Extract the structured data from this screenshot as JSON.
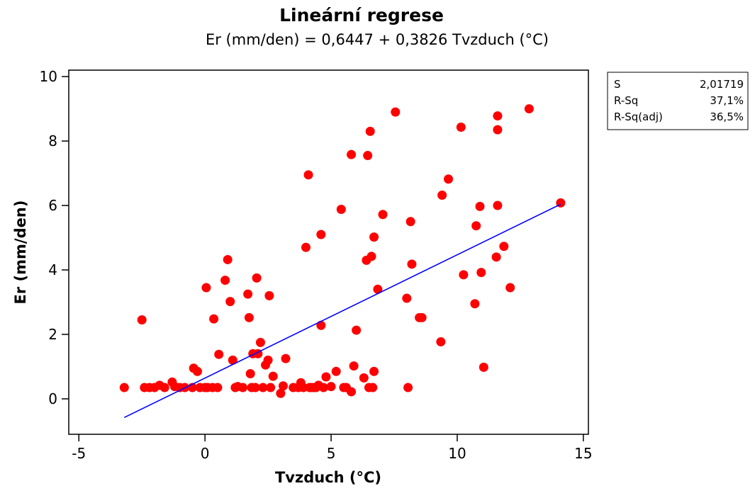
{
  "chart_data": {
    "type": "scatter",
    "title": "Lineární regrese",
    "subtitle": "Er (mm/den) =  0,6447 + 0,3826 Tvzduch (°C)",
    "xlabel": "Tvzduch (°C)",
    "ylabel": "Er (mm/den)",
    "xlim": [
      -5.4,
      15.2
    ],
    "ylim": [
      -1.1,
      10.2
    ],
    "x_ticks": [
      -5,
      0,
      5,
      10,
      15
    ],
    "x_tick_labels": [
      "-5",
      "0",
      "5",
      "10",
      "15"
    ],
    "y_ticks": [
      0,
      2,
      4,
      6,
      8,
      10
    ],
    "y_tick_labels": [
      "0",
      "2",
      "4",
      "6",
      "8",
      "10"
    ],
    "grid": false,
    "point_color": "#ff0000",
    "line_color": "#0000ff",
    "regression": {
      "intercept": 0.6447,
      "slope": 0.3826,
      "x_range": [
        -3.2,
        14.1
      ]
    },
    "points": [
      [
        -3.2,
        0.35
      ],
      [
        -2.5,
        2.45
      ],
      [
        -2.4,
        0.35
      ],
      [
        -2.2,
        0.35
      ],
      [
        -2.0,
        0.35
      ],
      [
        -1.8,
        0.42
      ],
      [
        -1.6,
        0.35
      ],
      [
        -1.3,
        0.52
      ],
      [
        -1.2,
        0.38
      ],
      [
        -1.0,
        0.35
      ],
      [
        -0.8,
        0.35
      ],
      [
        -0.5,
        0.35
      ],
      [
        -0.45,
        0.95
      ],
      [
        -0.3,
        0.85
      ],
      [
        -0.2,
        0.35
      ],
      [
        0.0,
        0.35
      ],
      [
        0.05,
        3.45
      ],
      [
        0.1,
        0.35
      ],
      [
        0.3,
        0.35
      ],
      [
        0.35,
        2.48
      ],
      [
        0.5,
        0.35
      ],
      [
        0.55,
        1.38
      ],
      [
        0.8,
        3.68
      ],
      [
        0.9,
        4.32
      ],
      [
        1.0,
        3.02
      ],
      [
        1.1,
        1.2
      ],
      [
        1.2,
        0.35
      ],
      [
        1.3,
        0.38
      ],
      [
        1.5,
        0.35
      ],
      [
        1.7,
        3.25
      ],
      [
        1.75,
        2.52
      ],
      [
        1.8,
        0.78
      ],
      [
        1.85,
        0.35
      ],
      [
        1.9,
        1.4
      ],
      [
        2.0,
        0.35
      ],
      [
        2.05,
        3.75
      ],
      [
        2.1,
        1.4
      ],
      [
        2.2,
        1.75
      ],
      [
        2.3,
        0.35
      ],
      [
        2.4,
        1.05
      ],
      [
        2.5,
        1.2
      ],
      [
        2.55,
        3.2
      ],
      [
        2.6,
        0.35
      ],
      [
        2.7,
        0.7
      ],
      [
        3.0,
        0.17
      ],
      [
        3.1,
        0.4
      ],
      [
        3.2,
        1.25
      ],
      [
        3.5,
        0.35
      ],
      [
        3.7,
        0.35
      ],
      [
        3.8,
        0.5
      ],
      [
        3.9,
        0.35
      ],
      [
        4.0,
        4.7
      ],
      [
        4.1,
        6.95
      ],
      [
        4.15,
        0.35
      ],
      [
        4.2,
        0.35
      ],
      [
        4.3,
        0.35
      ],
      [
        4.4,
        0.35
      ],
      [
        4.5,
        0.42
      ],
      [
        4.6,
        5.1
      ],
      [
        4.6,
        2.28
      ],
      [
        4.7,
        0.35
      ],
      [
        4.8,
        0.68
      ],
      [
        5.0,
        0.38
      ],
      [
        5.2,
        0.85
      ],
      [
        5.4,
        5.88
      ],
      [
        5.5,
        0.35
      ],
      [
        5.6,
        0.35
      ],
      [
        5.8,
        0.22
      ],
      [
        5.8,
        7.58
      ],
      [
        5.9,
        1.02
      ],
      [
        6.0,
        2.13
      ],
      [
        6.3,
        0.65
      ],
      [
        6.4,
        4.3
      ],
      [
        6.45,
        7.55
      ],
      [
        6.5,
        0.35
      ],
      [
        6.55,
        8.3
      ],
      [
        6.6,
        4.42
      ],
      [
        6.65,
        0.35
      ],
      [
        6.7,
        5.02
      ],
      [
        6.7,
        0.85
      ],
      [
        6.85,
        3.4
      ],
      [
        7.05,
        5.72
      ],
      [
        7.55,
        8.9
      ],
      [
        8.0,
        3.12
      ],
      [
        8.05,
        0.35
      ],
      [
        8.15,
        5.5
      ],
      [
        8.2,
        4.18
      ],
      [
        8.5,
        2.52
      ],
      [
        8.6,
        2.52
      ],
      [
        9.35,
        1.77
      ],
      [
        9.4,
        6.32
      ],
      [
        9.65,
        6.82
      ],
      [
        10.15,
        8.43
      ],
      [
        10.25,
        3.85
      ],
      [
        10.7,
        2.95
      ],
      [
        10.75,
        5.37
      ],
      [
        10.9,
        5.97
      ],
      [
        10.95,
        3.92
      ],
      [
        11.05,
        0.98
      ],
      [
        11.55,
        4.4
      ],
      [
        11.6,
        8.78
      ],
      [
        11.6,
        8.35
      ],
      [
        11.6,
        6.0
      ],
      [
        11.85,
        4.73
      ],
      [
        12.1,
        3.45
      ],
      [
        12.85,
        9.0
      ],
      [
        14.1,
        6.08
      ]
    ],
    "stats": [
      {
        "label": "S",
        "value": "2,01719"
      },
      {
        "label": "R-Sq",
        "value": "37,1%"
      },
      {
        "label": "R-Sq(adj)",
        "value": "36,5%"
      }
    ]
  }
}
